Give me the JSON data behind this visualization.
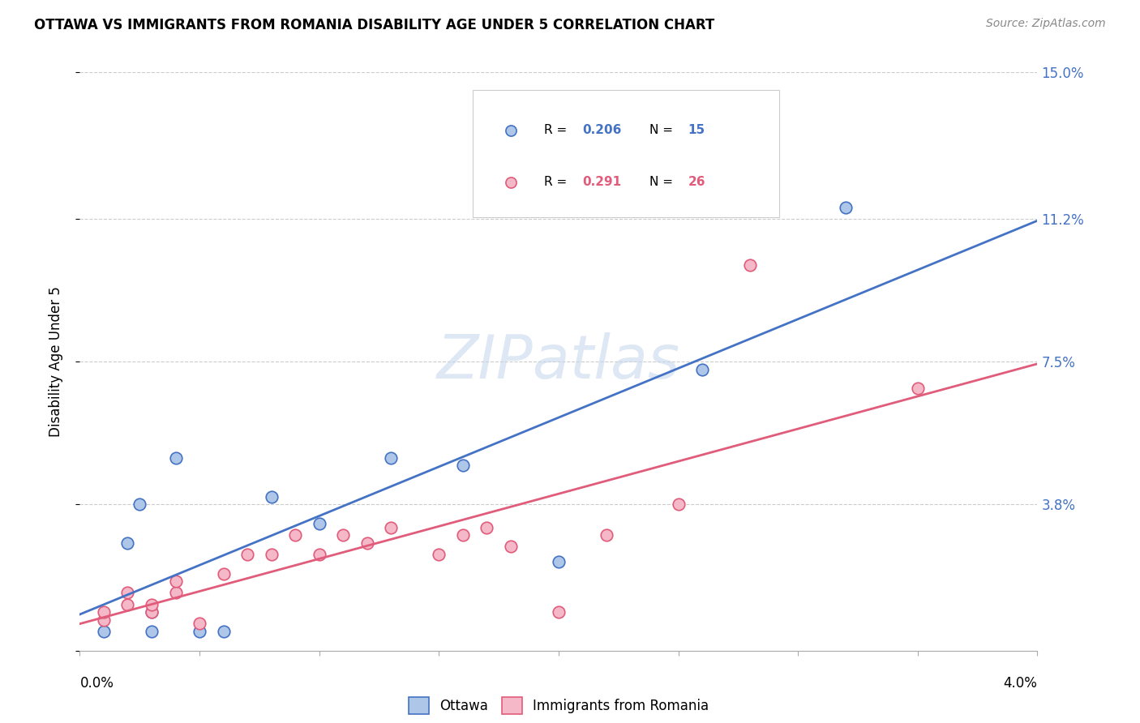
{
  "title": "OTTAWA VS IMMIGRANTS FROM ROMANIA DISABILITY AGE UNDER 5 CORRELATION CHART",
  "source": "Source: ZipAtlas.com",
  "ylabel": "Disability Age Under 5",
  "xmin": 0.0,
  "xmax": 0.04,
  "ymin": 0.0,
  "ymax": 0.15,
  "ytick_vals": [
    0.0,
    0.038,
    0.075,
    0.112,
    0.15
  ],
  "ytick_labels": [
    "",
    "3.8%",
    "7.5%",
    "11.2%",
    "15.0%"
  ],
  "grid_color": "#cccccc",
  "background_color": "#ffffff",
  "ottawa_color": "#aec6e8",
  "romania_color": "#f4b8c8",
  "ottawa_line_color": "#4472c4",
  "romania_line_color": "#e05c7a",
  "watermark": "ZIPatlas",
  "marker_size": 110,
  "ottawa_x": [
    0.001,
    0.002,
    0.0025,
    0.003,
    0.003,
    0.004,
    0.005,
    0.006,
    0.008,
    0.01,
    0.013,
    0.016,
    0.02,
    0.026,
    0.032
  ],
  "ottawa_y": [
    0.005,
    0.028,
    0.038,
    0.005,
    0.01,
    0.05,
    0.005,
    0.005,
    0.04,
    0.033,
    0.05,
    0.048,
    0.023,
    0.073,
    0.115
  ],
  "romania_x": [
    0.001,
    0.001,
    0.002,
    0.002,
    0.003,
    0.003,
    0.004,
    0.004,
    0.005,
    0.006,
    0.007,
    0.008,
    0.009,
    0.01,
    0.011,
    0.012,
    0.013,
    0.015,
    0.016,
    0.017,
    0.018,
    0.02,
    0.022,
    0.025,
    0.028,
    0.035
  ],
  "romania_y": [
    0.008,
    0.01,
    0.012,
    0.015,
    0.01,
    0.012,
    0.015,
    0.018,
    0.007,
    0.02,
    0.025,
    0.025,
    0.03,
    0.025,
    0.03,
    0.028,
    0.032,
    0.025,
    0.03,
    0.032,
    0.027,
    0.01,
    0.03,
    0.038,
    0.1,
    0.068
  ]
}
